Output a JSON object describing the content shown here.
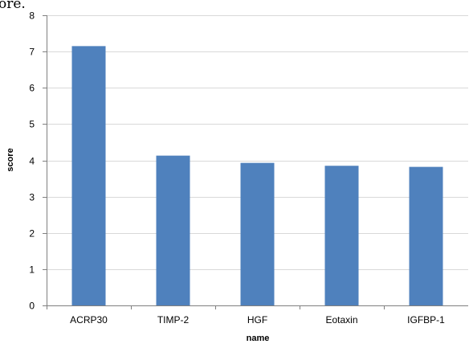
{
  "page": {
    "caption_fragment": "ore."
  },
  "colors": {
    "bar": "#4F81BD",
    "grid": "#D9D9D9",
    "axis": "#808080",
    "background": "#FFFFFF"
  },
  "chart_data": {
    "type": "bar",
    "categories": [
      "ACRP30",
      "TIMP-2",
      "HGF",
      "Eotaxin",
      "IGFBP-1"
    ],
    "values": [
      7.15,
      4.13,
      3.93,
      3.85,
      3.82
    ],
    "title": "",
    "xlabel": "name",
    "ylabel": "score",
    "ylim": [
      0,
      8
    ],
    "yticks": [
      "0",
      "1",
      "2",
      "3",
      "4",
      "5",
      "6",
      "7",
      "8"
    ],
    "grid": true,
    "legend": "none"
  }
}
